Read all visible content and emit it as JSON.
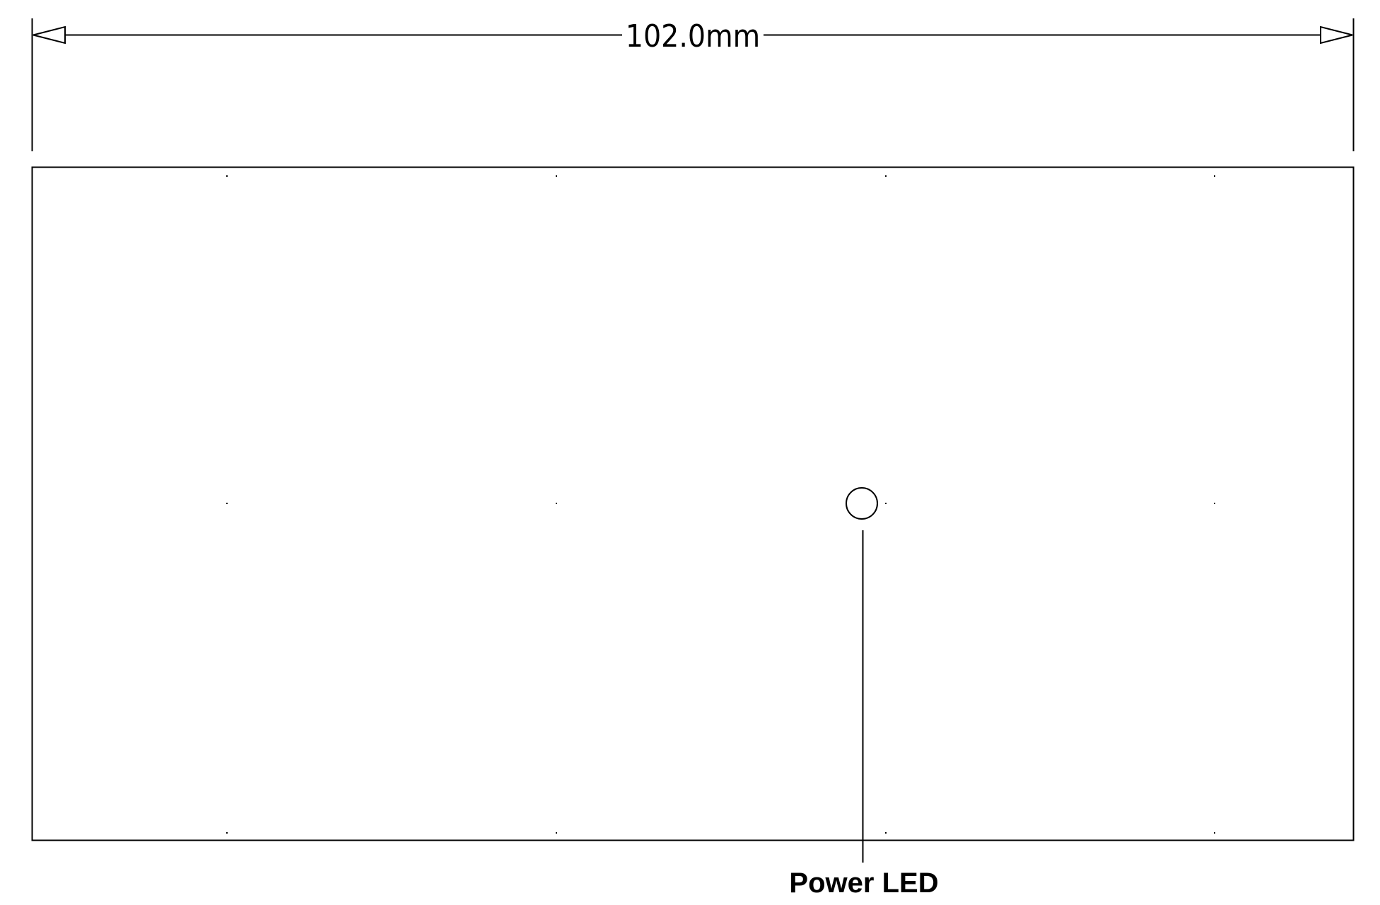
{
  "dimension": {
    "label": "102.0mm"
  },
  "callout": {
    "label": "Power LED"
  },
  "colors": {
    "stroke": "#000000",
    "background": "#ffffff"
  }
}
